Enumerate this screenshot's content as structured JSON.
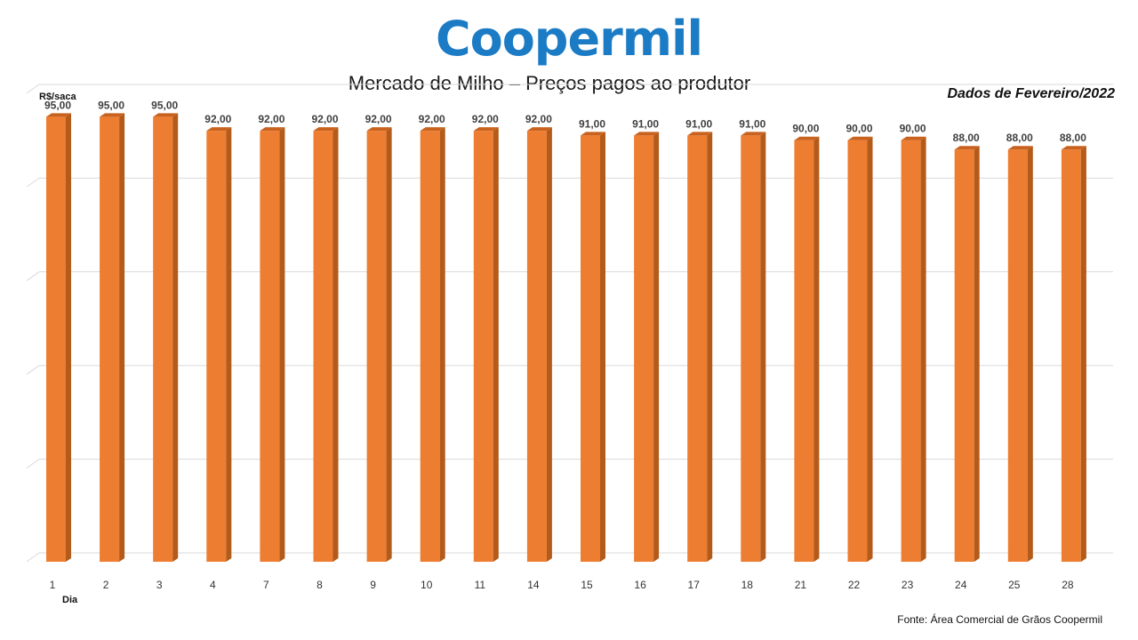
{
  "logo": {
    "text": "Coopermil",
    "color": "#1b7bc4"
  },
  "title": "Mercado de Milho – Preços pagos ao produtor",
  "period": "Dados de Fevereiro/2022",
  "source": "Fonte:  Área Comercial de Grãos Coopermil",
  "chart_data": {
    "type": "bar",
    "title": "Mercado de Milho – Preços pagos ao produtor",
    "xlabel": "Dia",
    "ylabel": "R$/saca",
    "categories": [
      "1",
      "2",
      "3",
      "4",
      "7",
      "8",
      "9",
      "10",
      "11",
      "14",
      "15",
      "16",
      "17",
      "18",
      "21",
      "22",
      "23",
      "24",
      "25",
      "28"
    ],
    "values": [
      95,
      95,
      95,
      92,
      92,
      92,
      92,
      92,
      92,
      92,
      91,
      91,
      91,
      91,
      90,
      90,
      90,
      88,
      88,
      88
    ],
    "value_labels": [
      "95,00",
      "95,00",
      "95,00",
      "92,00",
      "92,00",
      "92,00",
      "92,00",
      "92,00",
      "92,00",
      "92,00",
      "91,00",
      "91,00",
      "91,00",
      "91,00",
      "90,00",
      "90,00",
      "90,00",
      "88,00",
      "88,00",
      "88,00"
    ],
    "ylim": [
      0,
      100
    ],
    "grid": true,
    "legend": "none",
    "colors": {
      "bar_front": "#ed7d31",
      "bar_side": "#b35b1a",
      "bar_top": "#c9621e",
      "grid": "#d9d9d9",
      "labels": "#404040"
    }
  }
}
